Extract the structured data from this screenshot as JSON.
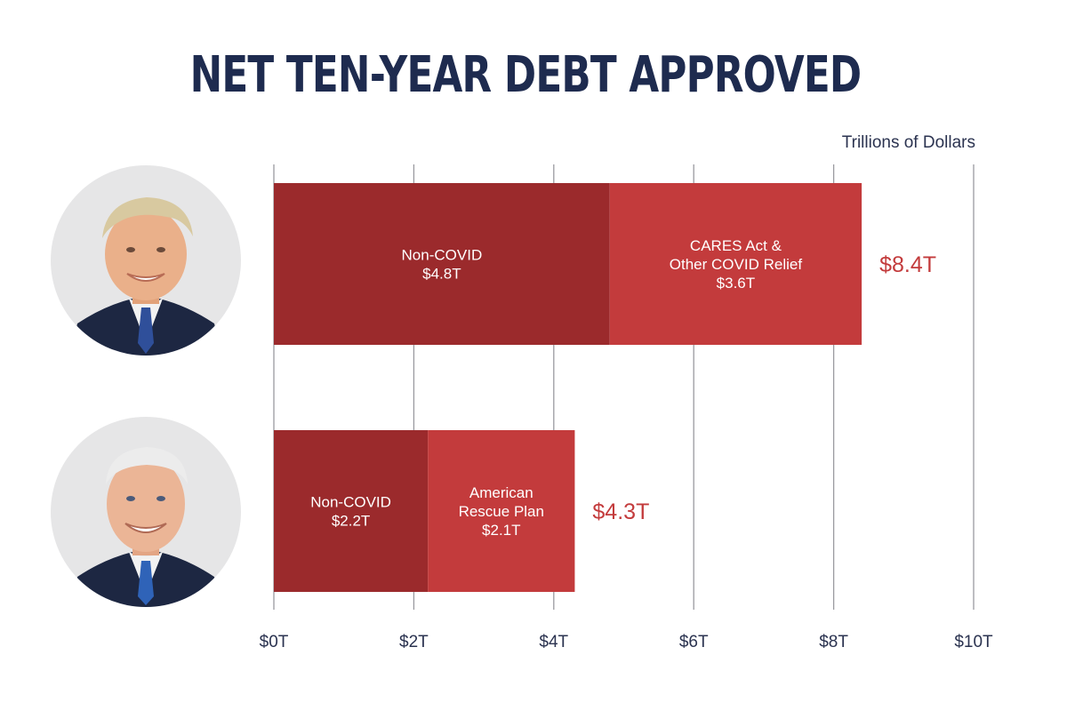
{
  "title": "NET TEN-YEAR DEBT APPROVED",
  "units": "Trillions of Dollars",
  "colors": {
    "title": "#1e2b4f",
    "non_covid": "#9b2a2c",
    "covid": "#c33b3c",
    "total_label": "#c33b3c",
    "axis_text": "#2b3350",
    "gridline": "#9a9aa0"
  },
  "rows": [
    {
      "person_icon": "trump-portrait-icon"
    },
    {
      "person_icon": "biden-portrait-icon"
    }
  ],
  "chart_data": {
    "type": "bar",
    "orientation": "horizontal",
    "stacked": true,
    "xlim": [
      0,
      10
    ],
    "x_ticks": [
      0,
      2,
      4,
      6,
      8,
      10
    ],
    "x_tick_labels": [
      "$0T",
      "$2T",
      "$4T",
      "$6T",
      "$8T",
      "$10T"
    ],
    "xlabel": "Trillions of Dollars",
    "grid": true,
    "bars": [
      {
        "segments": [
          {
            "value": 4.8,
            "label_lines": [
              "Non-COVID",
              "$4.8T"
            ]
          },
          {
            "value": 3.6,
            "label_lines": [
              "CARES Act &",
              "Other COVID Relief",
              "$3.6T"
            ]
          }
        ],
        "total": 8.4,
        "total_label": "$8.4T"
      },
      {
        "segments": [
          {
            "value": 2.2,
            "label_lines": [
              "Non-COVID",
              "$2.2T"
            ]
          },
          {
            "value": 2.1,
            "label_lines": [
              "American",
              "Rescue Plan",
              "$2.1T"
            ]
          }
        ],
        "total": 4.3,
        "total_label": "$4.3T"
      }
    ]
  }
}
